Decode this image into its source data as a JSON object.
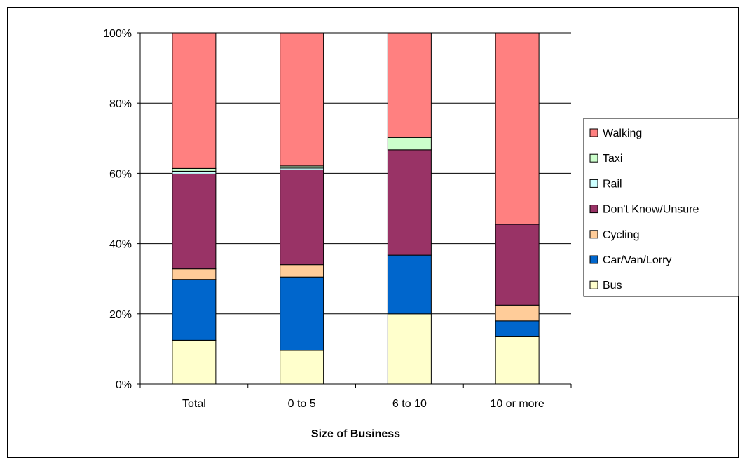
{
  "chart_data": {
    "type": "bar",
    "stacked": true,
    "percent": true,
    "title": "",
    "xlabel": "Size of Business",
    "ylabel": "",
    "ylim": [
      0,
      100
    ],
    "yticks": [
      "0%",
      "20%",
      "40%",
      "60%",
      "80%",
      "100%"
    ],
    "grid": true,
    "legend_position": "right",
    "categories": [
      "Total",
      "0 to 5",
      "6 to 10",
      "10 or more"
    ],
    "series": [
      {
        "name": "Bus",
        "color": "#ffffcc",
        "values": [
          12.5,
          9.6,
          20.0,
          13.5
        ]
      },
      {
        "name": "Car/Van/Lorry",
        "color": "#0066cc",
        "values": [
          17.3,
          20.9,
          16.7,
          4.5
        ]
      },
      {
        "name": "Cycling",
        "color": "#ffcc99",
        "values": [
          3.0,
          3.5,
          0.0,
          4.5
        ]
      },
      {
        "name": "Don't Know/Unsure",
        "color": "#993366",
        "values": [
          27.0,
          27.0,
          30.0,
          23.0
        ]
      },
      {
        "name": "Rail",
        "color": "#ccffff",
        "values": [
          0.8,
          0.5,
          0.0,
          0.0
        ]
      },
      {
        "name": "Taxi",
        "color": "#ccffcc",
        "values": [
          0.8,
          0.6,
          3.5,
          0.0
        ]
      },
      {
        "name": "Walking",
        "color": "#ff8080",
        "values": [
          38.6,
          37.9,
          29.8,
          54.5
        ]
      }
    ]
  }
}
